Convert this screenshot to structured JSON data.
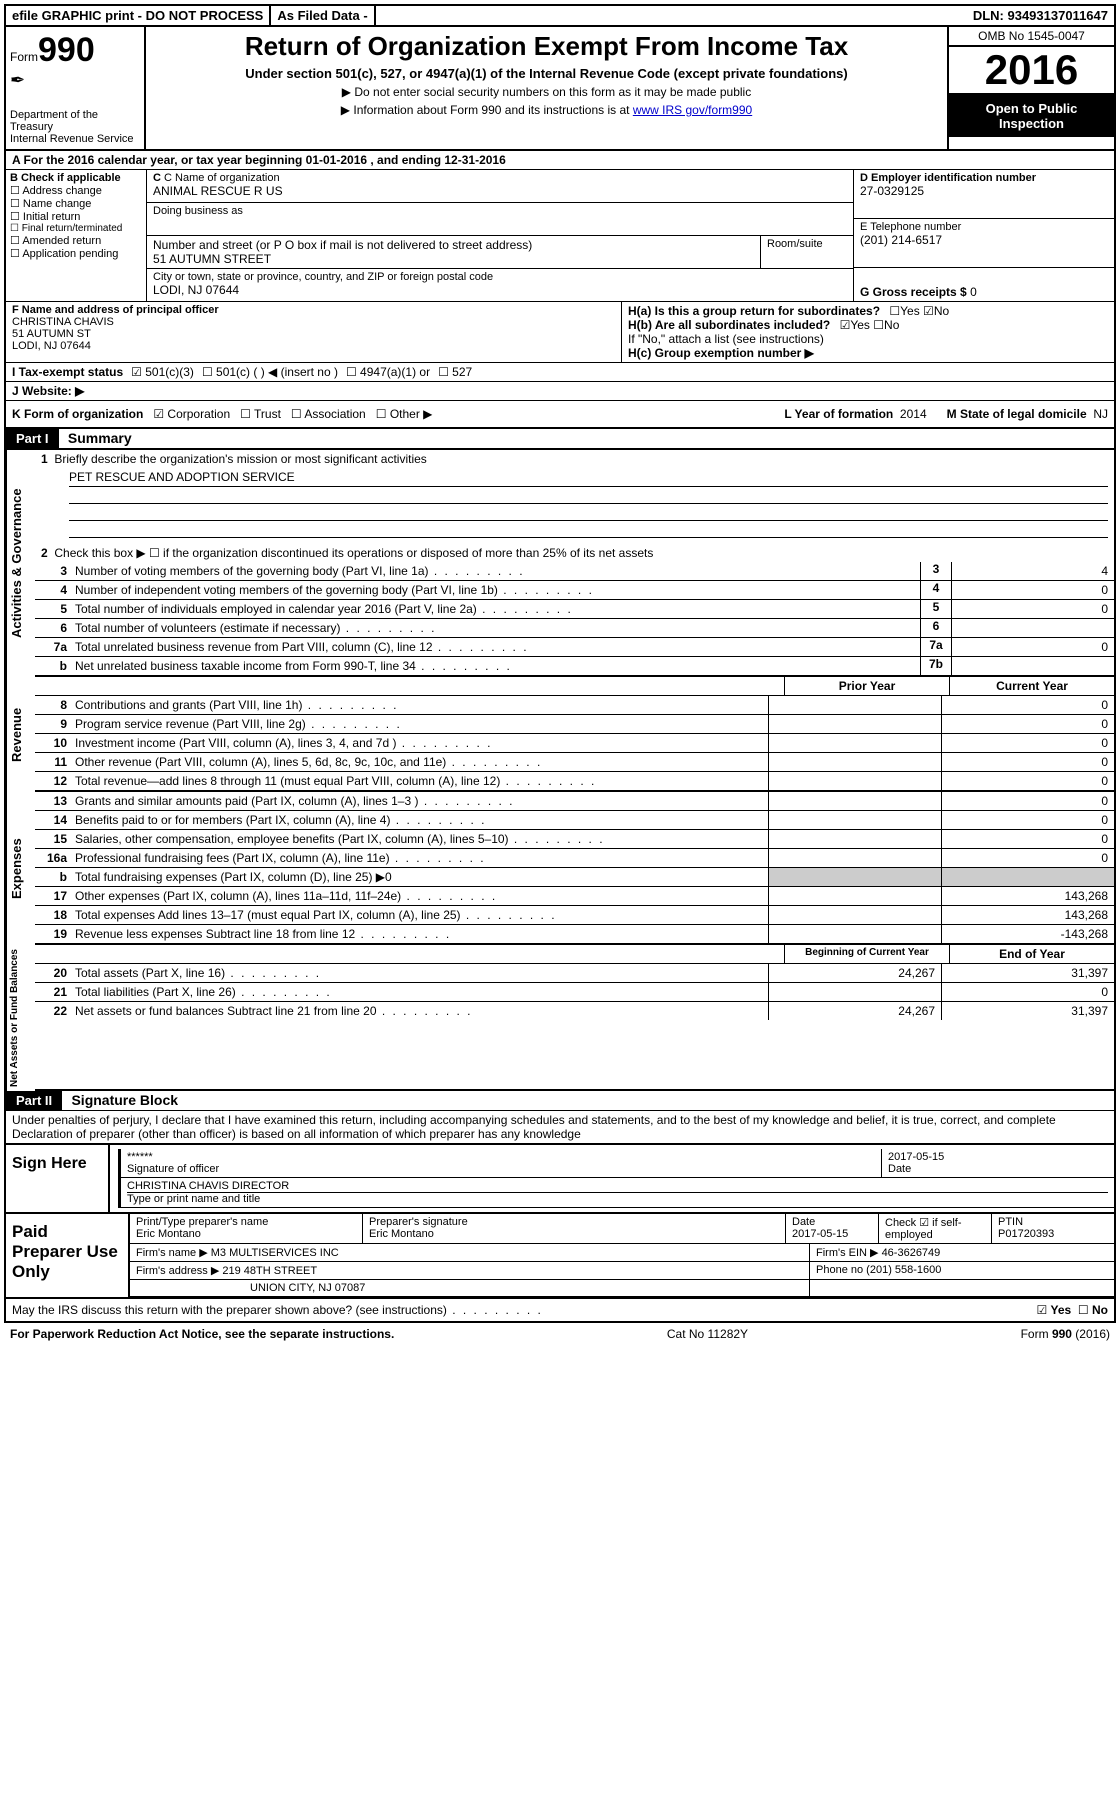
{
  "topbar": {
    "efile": "efile GRAPHIC print - DO NOT PROCESS",
    "asfiled": "As Filed Data -",
    "dln_label": "DLN:",
    "dln": "93493137011647"
  },
  "header": {
    "form_label": "Form",
    "form_no": "990",
    "dept1": "Department of the Treasury",
    "dept2": "Internal Revenue Service",
    "title": "Return of Organization Exempt From Income Tax",
    "sub1": "Under section 501(c), 527, or 4947(a)(1) of the Internal Revenue Code (except private foundations)",
    "sub2a": "Do not enter social security numbers on this form as it may be made public",
    "sub2b_pre": "Information about Form 990 and its instructions is at ",
    "sub2b_link": "www IRS gov/form990",
    "omb": "OMB No 1545-0047",
    "year": "2016",
    "open1": "Open to Public",
    "open2": "Inspection"
  },
  "line_a": "A  For the 2016 calendar year, or tax year beginning 01-01-2016   , and ending 12-31-2016",
  "col_b": {
    "hdr": "B Check if applicable",
    "items": [
      "Address change",
      "Name change",
      "Initial return",
      "Final return/terminated",
      "Amended return",
      "Application pending"
    ]
  },
  "box_c": {
    "lbl_name": "C Name of organization",
    "name": "ANIMAL RESCUE R US",
    "lbl_dba": "Doing business as",
    "dba": "",
    "lbl_addr": "Number and street (or P O  box if mail is not delivered to street address)",
    "room": "Room/suite",
    "addr": "51 AUTUMN STREET",
    "lbl_city": "City or town, state or province, country, and ZIP or foreign postal code",
    "city": "LODI, NJ  07644"
  },
  "box_d": {
    "lbl": "D Employer identification number",
    "val": "27-0329125"
  },
  "box_e": {
    "lbl": "E Telephone number",
    "val": "(201) 214-6517"
  },
  "box_g": {
    "lbl": "G Gross receipts $",
    "val": "0"
  },
  "box_f": {
    "lbl": "F  Name and address of principal officer",
    "l1": "CHRISTINA CHAVIS",
    "l2": "51 AUTUMN ST",
    "l3": "LODI, NJ  07644"
  },
  "box_h": {
    "ha": "H(a)  Is this a group return for subordinates?",
    "hb": "H(b)  Are all subordinates included?",
    "hb_note": "If \"No,\" attach a list  (see instructions)",
    "hc": "H(c)  Group exemption number ▶",
    "yes": "Yes",
    "no": "No"
  },
  "line_i": {
    "lbl": "I  Tax-exempt status",
    "opts": [
      "501(c)(3)",
      "501(c) (  ) ◀ (insert no )",
      "4947(a)(1) or",
      "527"
    ]
  },
  "line_j": "J  Website: ▶",
  "line_k": {
    "lbl": "K Form of organization",
    "opts": [
      "Corporation",
      "Trust",
      "Association",
      "Other ▶"
    ],
    "l_lbl": "L Year of formation",
    "l_val": "2014",
    "m_lbl": "M State of legal domicile",
    "m_val": "NJ"
  },
  "part1": {
    "hdr": "Part I",
    "title": "Summary"
  },
  "sections": {
    "gov": "Activities & Governance",
    "rev": "Revenue",
    "exp": "Expenses",
    "net": "Net Assets or Fund Balances"
  },
  "q1": {
    "num": "1",
    "txt": "Briefly describe the organization's mission or most significant activities",
    "val": "PET RESCUE AND ADOPTION SERVICE"
  },
  "q2": {
    "num": "2",
    "txt": "Check this box ▶ ☐  if the organization discontinued its operations or disposed of more than 25% of its net assets"
  },
  "gov_lines": [
    {
      "n": "3",
      "t": "Number of voting members of the governing body (Part VI, line 1a)",
      "box": "3",
      "v": "4"
    },
    {
      "n": "4",
      "t": "Number of independent voting members of the governing body (Part VI, line 1b)",
      "box": "4",
      "v": "0"
    },
    {
      "n": "5",
      "t": "Total number of individuals employed in calendar year 2016 (Part V, line 2a)",
      "box": "5",
      "v": "0"
    },
    {
      "n": "6",
      "t": "Total number of volunteers (estimate if necessary)",
      "box": "6",
      "v": ""
    },
    {
      "n": "7a",
      "t": "Total unrelated business revenue from Part VIII, column (C), line 12",
      "box": "7a",
      "v": "0"
    },
    {
      "n": "b",
      "t": "Net unrelated business taxable income from Form 990-T, line 34",
      "box": "7b",
      "v": ""
    }
  ],
  "col_hdrs": {
    "c1": "Prior Year",
    "c2": "Current Year"
  },
  "rev_lines": [
    {
      "n": "8",
      "t": "Contributions and grants (Part VIII, line 1h)",
      "c1": "",
      "c2": "0"
    },
    {
      "n": "9",
      "t": "Program service revenue (Part VIII, line 2g)",
      "c1": "",
      "c2": "0"
    },
    {
      "n": "10",
      "t": "Investment income (Part VIII, column (A), lines 3, 4, and 7d )",
      "c1": "",
      "c2": "0"
    },
    {
      "n": "11",
      "t": "Other revenue (Part VIII, column (A), lines 5, 6d, 8c, 9c, 10c, and 11e)",
      "c1": "",
      "c2": "0"
    },
    {
      "n": "12",
      "t": "Total revenue—add lines 8 through 11 (must equal Part VIII, column (A), line 12)",
      "c1": "",
      "c2": "0"
    }
  ],
  "exp_lines": [
    {
      "n": "13",
      "t": "Grants and similar amounts paid (Part IX, column (A), lines 1–3 )",
      "c1": "",
      "c2": "0"
    },
    {
      "n": "14",
      "t": "Benefits paid to or for members (Part IX, column (A), line 4)",
      "c1": "",
      "c2": "0"
    },
    {
      "n": "15",
      "t": "Salaries, other compensation, employee benefits (Part IX, column (A), lines 5–10)",
      "c1": "",
      "c2": "0"
    },
    {
      "n": "16a",
      "t": "Professional fundraising fees (Part IX, column (A), line 11e)",
      "c1": "",
      "c2": "0"
    },
    {
      "n": "b",
      "t": "Total fundraising expenses (Part IX, column (D), line 25) ▶0",
      "c1": "—",
      "c2": "—"
    },
    {
      "n": "17",
      "t": "Other expenses (Part IX, column (A), lines 11a–11d, 11f–24e)",
      "c1": "",
      "c2": "143,268"
    },
    {
      "n": "18",
      "t": "Total expenses  Add lines 13–17 (must equal Part IX, column (A), line 25)",
      "c1": "",
      "c2": "143,268"
    },
    {
      "n": "19",
      "t": "Revenue less expenses  Subtract line 18 from line 12",
      "c1": "",
      "c2": "-143,268"
    }
  ],
  "net_hdrs": {
    "c1": "Beginning of Current Year",
    "c2": "End of Year"
  },
  "net_lines": [
    {
      "n": "20",
      "t": "Total assets (Part X, line 16)",
      "c1": "24,267",
      "c2": "31,397"
    },
    {
      "n": "21",
      "t": "Total liabilities (Part X, line 26)",
      "c1": "",
      "c2": "0"
    },
    {
      "n": "22",
      "t": "Net assets or fund balances  Subtract line 21 from line 20",
      "c1": "24,267",
      "c2": "31,397"
    }
  ],
  "part2": {
    "hdr": "Part II",
    "title": "Signature Block"
  },
  "perjury": "Under penalties of perjury, I declare that I have examined this return, including accompanying schedules and statements, and to the best of my knowledge and belief, it is true, correct, and complete  Declaration of preparer (other than officer) is based on all information of which preparer has any knowledge",
  "sign": {
    "lbl": "Sign Here",
    "stars": "******",
    "sig_lbl": "Signature of officer",
    "date": "2017-05-15",
    "date_lbl": "Date",
    "name": "CHRISTINA CHAVIS  DIRECTOR",
    "name_lbl": "Type or print name and title"
  },
  "prep": {
    "lbl": "Paid Preparer Use Only",
    "r1": {
      "c1_lbl": "Print/Type preparer's name",
      "c1": "Eric Montano",
      "c2_lbl": "Preparer's signature",
      "c2": "Eric Montano",
      "c3_lbl": "Date",
      "c3": "2017-05-15",
      "c4_lbl": "Check ☑ if self-employed",
      "c5_lbl": "PTIN",
      "c5": "P01720393"
    },
    "r2": {
      "lbl": "Firm's name    ▶",
      "val": "M3 MULTISERVICES INC",
      "ein_lbl": "Firm's EIN ▶",
      "ein": "46-3626749"
    },
    "r3": {
      "lbl": "Firm's address ▶",
      "val": "219 48TH STREET",
      "ph_lbl": "Phone no",
      "ph": "(201) 558-1600"
    },
    "r4": {
      "val": "UNION CITY, NJ  07087"
    }
  },
  "discuss": {
    "txt": "May the IRS discuss this return with the preparer shown above? (see instructions)",
    "yes": "Yes",
    "no": "No"
  },
  "foot": {
    "left": "For Paperwork Reduction Act Notice, see the separate instructions.",
    "mid": "Cat  No  11282Y",
    "right_pre": "Form ",
    "right_b": "990",
    "right_post": " (2016)"
  }
}
